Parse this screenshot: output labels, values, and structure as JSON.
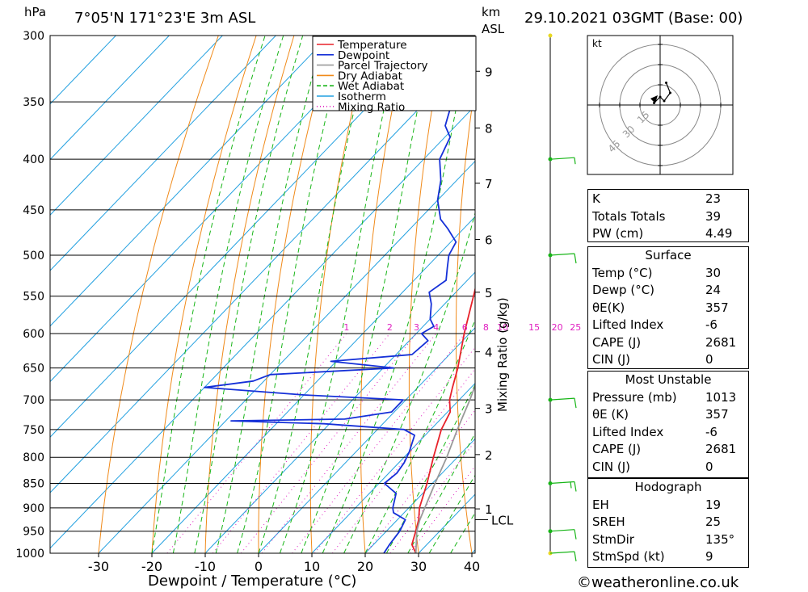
{
  "header": {
    "y_unit": "hPa",
    "location": "7°05'N  171°23'E  3m  ASL",
    "km_label": "km",
    "asl_label": "ASL",
    "datetime": "29.10.2021  03GMT  (Base: 00)"
  },
  "footer": {
    "x_axis_title": "Dewpoint / Temperature (°C)",
    "mixing_ratio_title": "Mixing Ratio (g/kg)",
    "credit": "©weatheronline.co.uk"
  },
  "legend": [
    {
      "label": "Temperature",
      "color": "#e8222a"
    },
    {
      "label": "Dewpoint",
      "color": "#1530d8"
    },
    {
      "label": "Parcel Trajectory",
      "color": "#9a9a9a"
    },
    {
      "label": "Dry Adiabat",
      "color": "#f08a1a"
    },
    {
      "label": "Wet Adiabat",
      "color": "#17b517"
    },
    {
      "label": "Isotherm",
      "color": "#22a0e0"
    },
    {
      "label": "Mixing Ratio",
      "color": "#e020c0"
    }
  ],
  "hodograph": {
    "unit_label": "kt",
    "ring_labels": [
      "15",
      "30",
      "45"
    ]
  },
  "indices": {
    "general": [
      {
        "label": "K",
        "value": "23"
      },
      {
        "label": "Totals Totals",
        "value": "39"
      },
      {
        "label": "PW (cm)",
        "value": "4.49"
      }
    ],
    "surface_title": "Surface",
    "surface": [
      {
        "label": "Temp (°C)",
        "value": "30"
      },
      {
        "label": "Dewp (°C)",
        "value": "24"
      },
      {
        "label": "θE(K)",
        "value": "357"
      },
      {
        "label": "Lifted Index",
        "value": "-6"
      },
      {
        "label": "CAPE (J)",
        "value": "2681"
      },
      {
        "label": "CIN (J)",
        "value": "0"
      }
    ],
    "mu_title": "Most Unstable",
    "most_unstable": [
      {
        "label": "Pressure (mb)",
        "value": "1013"
      },
      {
        "label": "θE (K)",
        "value": "357"
      },
      {
        "label": "Lifted Index",
        "value": "-6"
      },
      {
        "label": "CAPE (J)",
        "value": "2681"
      },
      {
        "label": "CIN (J)",
        "value": "0"
      }
    ],
    "hodo_title": "Hodograph",
    "hodo": [
      {
        "label": "EH",
        "value": "19"
      },
      {
        "label": "SREH",
        "value": "25"
      },
      {
        "label": "StmDir",
        "value": "135°"
      },
      {
        "label": "StmSpd (kt)",
        "value": "9"
      }
    ]
  },
  "chart_data": {
    "type": "line",
    "title": "7°05'N  171°23'E  3m  ASL",
    "xlabel": "Dewpoint / Temperature (°C)",
    "ylabel": "hPa",
    "ylim": [
      1000,
      300
    ],
    "xlim": [
      -40,
      40
    ],
    "pressure_ticks": [
      300,
      350,
      400,
      450,
      500,
      550,
      600,
      650,
      700,
      750,
      800,
      850,
      900,
      950,
      1000
    ],
    "temperature_ticks": [
      -30,
      -20,
      -10,
      0,
      10,
      20,
      30,
      40
    ],
    "km_ticks": [
      {
        "label": "9",
        "p": 326
      },
      {
        "label": "8",
        "p": 372
      },
      {
        "label": "7",
        "p": 423
      },
      {
        "label": "6",
        "p": 482
      },
      {
        "label": "5",
        "p": 545
      },
      {
        "label": "4",
        "p": 626
      },
      {
        "label": "3",
        "p": 714
      },
      {
        "label": "2",
        "p": 795
      },
      {
        "label": "1",
        "p": 902
      }
    ],
    "lcl": {
      "label": "LCL",
      "p": 925
    },
    "mixing_ratio_labels": [
      "1",
      "2",
      "3",
      "4",
      "6",
      "8",
      "10",
      "15",
      "20",
      "25"
    ],
    "mixing_ratio_values": [
      1,
      2,
      3,
      4,
      6,
      8,
      10,
      15,
      20,
      25
    ],
    "series": [
      {
        "name": "Temperature",
        "color": "#e8222a",
        "points": [
          [
            1000,
            29.5
          ],
          [
            980,
            27.2
          ],
          [
            950,
            25.5
          ],
          [
            925,
            24
          ],
          [
            900,
            22
          ],
          [
            850,
            19
          ],
          [
            800,
            15.5
          ],
          [
            750,
            12
          ],
          [
            720,
            10.5
          ],
          [
            700,
            8.2
          ],
          [
            680,
            6.5
          ],
          [
            650,
            4
          ],
          [
            600,
            -1
          ],
          [
            550,
            -6
          ],
          [
            500,
            -11.5
          ],
          [
            480,
            -14
          ],
          [
            450,
            -18.5
          ],
          [
            420,
            -23
          ],
          [
            400,
            -27
          ],
          [
            380,
            -30.5
          ],
          [
            370,
            -32.5
          ],
          [
            360,
            -35
          ]
        ]
      },
      {
        "name": "Dewpoint",
        "color": "#1530d8",
        "points": [
          [
            1000,
            23.5
          ],
          [
            980,
            23
          ],
          [
            950,
            22.5
          ],
          [
            925,
            21.5
          ],
          [
            910,
            18
          ],
          [
            900,
            17
          ],
          [
            870,
            15
          ],
          [
            850,
            11
          ],
          [
            830,
            11.5
          ],
          [
            810,
            11
          ],
          [
            790,
            10
          ],
          [
            760,
            8
          ],
          [
            750,
            5
          ],
          [
            740,
            -11
          ],
          [
            735,
            -29
          ],
          [
            732,
            -8
          ],
          [
            720,
            -0.5
          ],
          [
            700,
            -0.5
          ],
          [
            692,
            -20
          ],
          [
            680,
            -40
          ],
          [
            670,
            -32
          ],
          [
            660,
            -30
          ],
          [
            650,
            -8
          ],
          [
            640,
            -21
          ],
          [
            630,
            -7
          ],
          [
            610,
            -6.5
          ],
          [
            600,
            -9
          ],
          [
            590,
            -8
          ],
          [
            580,
            -10
          ],
          [
            560,
            -12.5
          ],
          [
            545,
            -15
          ],
          [
            530,
            -14
          ],
          [
            515,
            -16
          ],
          [
            500,
            -18
          ],
          [
            485,
            -19
          ],
          [
            470,
            -23
          ],
          [
            460,
            -26
          ],
          [
            440,
            -30
          ],
          [
            420,
            -33
          ],
          [
            400,
            -37
          ],
          [
            390,
            -38
          ],
          [
            380,
            -39
          ],
          [
            370,
            -42
          ],
          [
            350,
            -45
          ],
          [
            340,
            -48
          ],
          [
            330,
            -52
          ],
          [
            320,
            -55
          ],
          [
            310,
            -58
          ],
          [
            300,
            -61
          ]
        ]
      },
      {
        "name": "Parcel Trajectory",
        "color": "#9a9a9a",
        "points": [
          [
            1000,
            29.5
          ],
          [
            950,
            25.7
          ],
          [
            925,
            24.2
          ],
          [
            900,
            23
          ],
          [
            850,
            20.5
          ],
          [
            800,
            18
          ],
          [
            750,
            15
          ],
          [
            700,
            12
          ],
          [
            650,
            8.5
          ],
          [
            600,
            5
          ],
          [
            550,
            1
          ],
          [
            500,
            -3
          ],
          [
            450,
            -8
          ],
          [
            400,
            -14
          ],
          [
            370,
            -18.5
          ],
          [
            350,
            -22
          ]
        ]
      }
    ],
    "wind_profile": [
      {
        "p": 1000,
        "barbs": 1,
        "half": false
      },
      {
        "p": 950,
        "barbs": 1,
        "half": false
      },
      {
        "p": 850,
        "barbs": 1,
        "half": true
      },
      {
        "p": 700,
        "barbs": 1,
        "half": false
      },
      {
        "p": 500,
        "barbs": 1,
        "half": false
      },
      {
        "p": 400,
        "barbs": 0,
        "half": true
      },
      {
        "p": 300,
        "barbs": 0,
        "half": false
      }
    ],
    "hodograph_points": [
      [
        -3,
        -1
      ],
      [
        0,
        -4
      ],
      [
        2,
        -2
      ],
      [
        5,
        -6
      ],
      [
        3,
        -11
      ]
    ]
  }
}
